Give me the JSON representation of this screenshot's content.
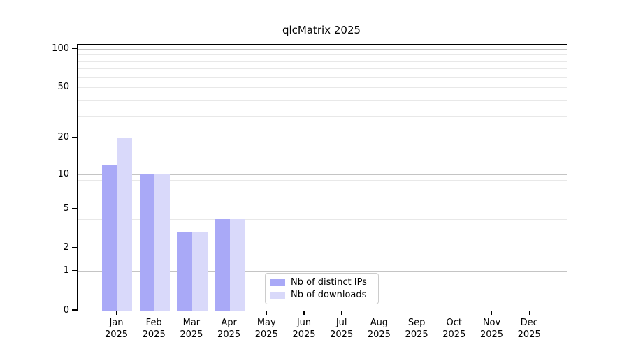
{
  "title": "qlcMatrix 2025",
  "chart_data": {
    "type": "bar",
    "title": "qlcMatrix 2025",
    "x_months": [
      "Jan",
      "Feb",
      "Mar",
      "Apr",
      "May",
      "Jun",
      "Jul",
      "Aug",
      "Sep",
      "Oct",
      "Nov",
      "Dec"
    ],
    "x_year": "2025",
    "series": [
      {
        "name": "Nb of distinct IPs",
        "color": "#a9a9f7",
        "values": [
          12,
          10,
          3,
          4,
          0,
          0,
          0,
          0,
          0,
          0,
          0,
          0
        ]
      },
      {
        "name": "Nb of downloads",
        "color": "#d9d9fa",
        "values": [
          20,
          10,
          3,
          4,
          0,
          0,
          0,
          0,
          0,
          0,
          0,
          0
        ]
      }
    ],
    "yticks": [
      0,
      1,
      2,
      5,
      10,
      20,
      50,
      100
    ],
    "grid_major_values": [
      1,
      10,
      100
    ],
    "grid_minor_values": [
      2,
      3,
      4,
      5,
      6,
      7,
      8,
      9,
      20,
      30,
      40,
      50,
      60,
      70,
      80,
      90
    ],
    "scale": "log1p",
    "ylim": [
      0,
      110
    ],
    "grid": "both",
    "legend_position": "lower-center-inside",
    "colors": {
      "grid_major": "#c4c4c4",
      "grid_minor": "#e8e8e8",
      "spine": "#000000",
      "background": "#ffffff"
    }
  }
}
